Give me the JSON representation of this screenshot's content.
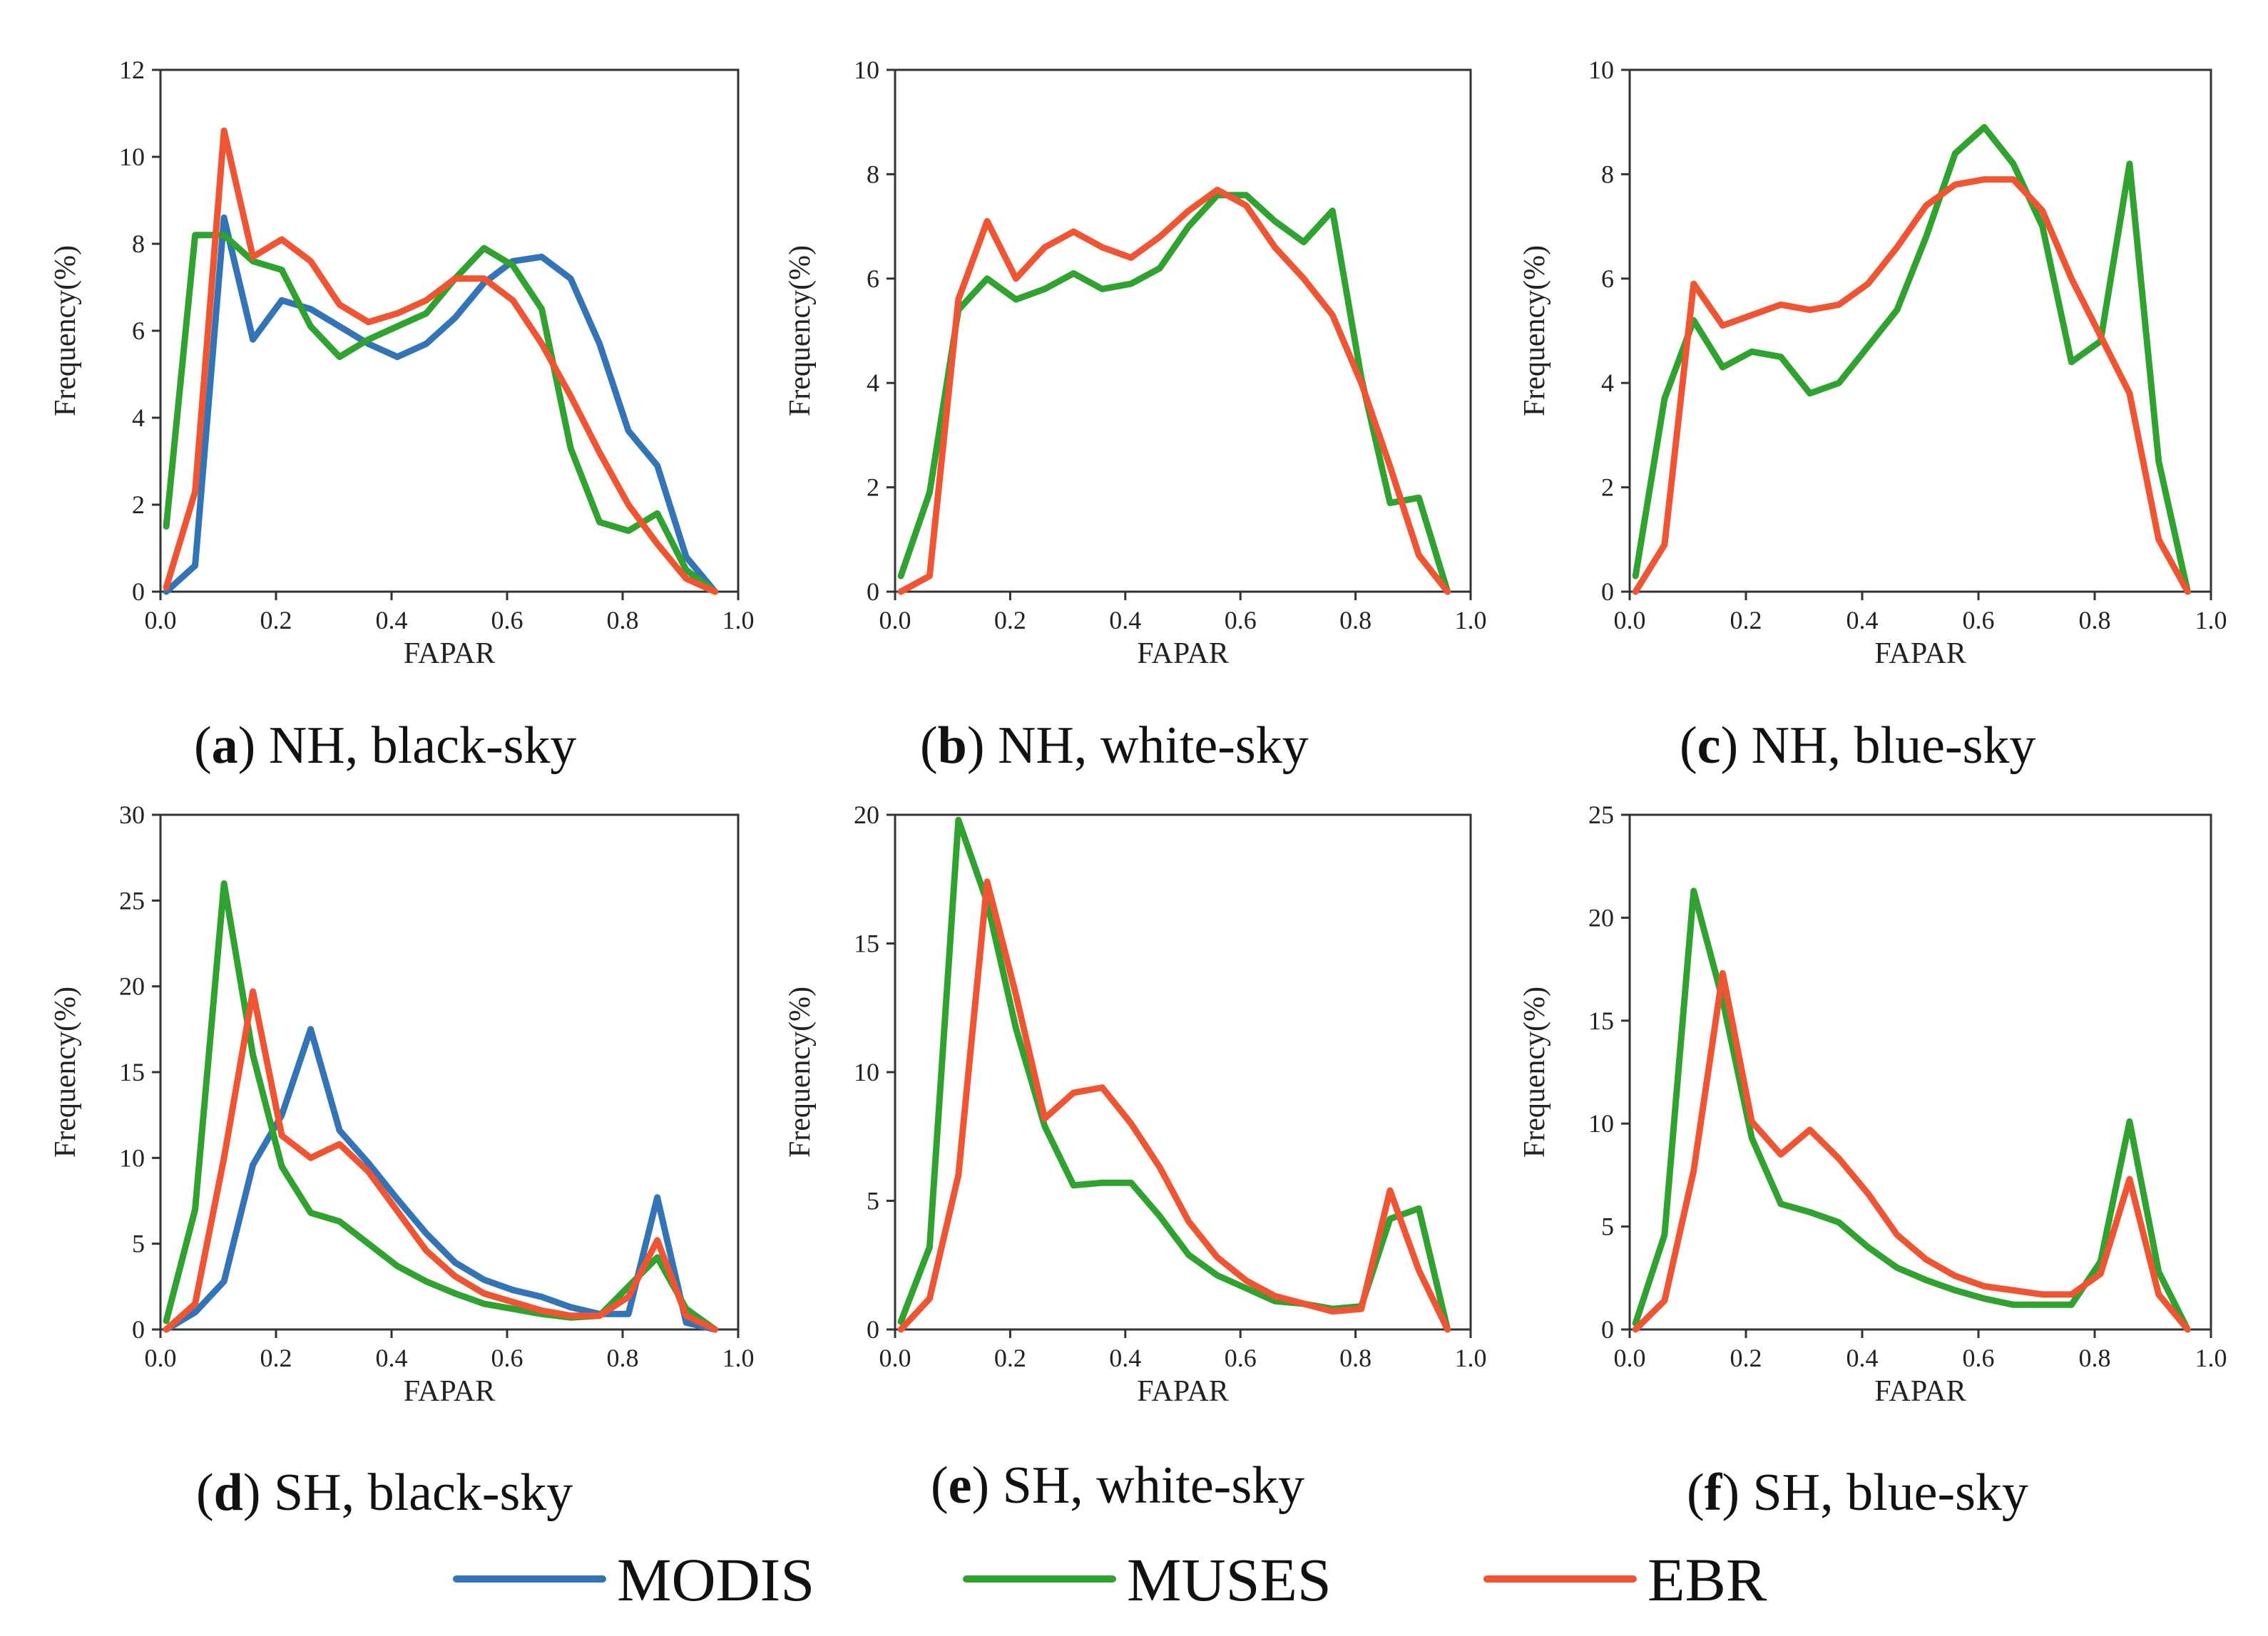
{
  "series_colors": {
    "MODIS": "#3374b6",
    "MUSES": "#2fa22f",
    "EBR": "#ef5533"
  },
  "legend": {
    "items": [
      "MODIS",
      "MUSES",
      "EBR"
    ]
  },
  "chart_data": [
    {
      "type": "line",
      "caption_letter": "a",
      "caption_open": "(",
      "caption_close": ")",
      "caption_text": " NH, black-sky",
      "xlabel": "FAPAR",
      "ylabel": "Frequency(%)",
      "xlim": [
        0.0,
        1.0
      ],
      "ylim": [
        0,
        12
      ],
      "xticks": [
        "0.0",
        "0.2",
        "0.4",
        "0.6",
        "0.8",
        "1.0"
      ],
      "yticks": [
        "0",
        "2",
        "4",
        "6",
        "8",
        "10",
        "12"
      ],
      "x": [
        0.01,
        0.06,
        0.11,
        0.16,
        0.21,
        0.26,
        0.31,
        0.36,
        0.41,
        0.46,
        0.51,
        0.56,
        0.61,
        0.66,
        0.71,
        0.76,
        0.81,
        0.86,
        0.91,
        0.96
      ],
      "series": [
        {
          "name": "MODIS",
          "values": [
            0.0,
            0.6,
            8.6,
            5.8,
            6.7,
            6.5,
            6.1,
            5.7,
            5.4,
            5.7,
            6.3,
            7.1,
            7.6,
            7.7,
            7.2,
            5.7,
            3.7,
            2.9,
            0.8,
            0.0
          ]
        },
        {
          "name": "MUSES",
          "values": [
            1.5,
            8.2,
            8.2,
            7.6,
            7.4,
            6.1,
            5.4,
            5.8,
            6.1,
            6.4,
            7.2,
            7.9,
            7.5,
            6.5,
            3.3,
            1.6,
            1.4,
            1.8,
            0.5,
            0.0
          ]
        },
        {
          "name": "EBR",
          "values": [
            0.1,
            2.3,
            10.6,
            7.7,
            8.1,
            7.6,
            6.6,
            6.2,
            6.4,
            6.7,
            7.2,
            7.2,
            6.7,
            5.7,
            4.5,
            3.2,
            2.0,
            1.1,
            0.3,
            0.0
          ]
        }
      ]
    },
    {
      "type": "line",
      "caption_letter": "b",
      "caption_open": "(",
      "caption_close": ")",
      "caption_text": " NH, white-sky",
      "xlabel": "FAPAR",
      "ylabel": "Frequency(%)",
      "xlim": [
        0.0,
        1.0
      ],
      "ylim": [
        0,
        10
      ],
      "xticks": [
        "0.0",
        "0.2",
        "0.4",
        "0.6",
        "0.8",
        "1.0"
      ],
      "yticks": [
        "0",
        "2",
        "4",
        "6",
        "8",
        "10"
      ],
      "x": [
        0.01,
        0.06,
        0.11,
        0.16,
        0.21,
        0.26,
        0.31,
        0.36,
        0.41,
        0.46,
        0.51,
        0.56,
        0.61,
        0.66,
        0.71,
        0.76,
        0.81,
        0.86,
        0.91,
        0.96
      ],
      "series": [
        {
          "name": "MUSES",
          "values": [
            0.3,
            1.9,
            5.4,
            6.0,
            5.6,
            5.8,
            6.1,
            5.8,
            5.9,
            6.2,
            7.0,
            7.6,
            7.6,
            7.1,
            6.7,
            7.3,
            4.1,
            1.7,
            1.8,
            0.0
          ]
        },
        {
          "name": "EBR",
          "values": [
            0.0,
            0.3,
            5.6,
            7.1,
            6.0,
            6.6,
            6.9,
            6.6,
            6.4,
            6.8,
            7.3,
            7.7,
            7.4,
            6.6,
            6.0,
            5.3,
            4.0,
            2.4,
            0.7,
            0.0
          ]
        }
      ]
    },
    {
      "type": "line",
      "caption_letter": "c",
      "caption_open": "(",
      "caption_close": ")",
      "caption_text": " NH, blue-sky",
      "xlabel": "FAPAR",
      "ylabel": "Frequency(%)",
      "xlim": [
        0.0,
        1.0
      ],
      "ylim": [
        0,
        10
      ],
      "xticks": [
        "0.0",
        "0.2",
        "0.4",
        "0.6",
        "0.8",
        "1.0"
      ],
      "yticks": [
        "0",
        "2",
        "4",
        "6",
        "8",
        "10"
      ],
      "x": [
        0.01,
        0.06,
        0.11,
        0.16,
        0.21,
        0.26,
        0.31,
        0.36,
        0.41,
        0.46,
        0.51,
        0.56,
        0.61,
        0.66,
        0.71,
        0.76,
        0.81,
        0.86,
        0.91,
        0.96
      ],
      "series": [
        {
          "name": "MUSES",
          "values": [
            0.3,
            3.7,
            5.2,
            4.3,
            4.6,
            4.5,
            3.8,
            4.0,
            4.7,
            5.4,
            6.8,
            8.4,
            8.9,
            8.2,
            7.0,
            4.4,
            4.8,
            8.2,
            2.5,
            0.0
          ]
        },
        {
          "name": "EBR",
          "values": [
            0.0,
            0.9,
            5.9,
            5.1,
            5.3,
            5.5,
            5.4,
            5.5,
            5.9,
            6.6,
            7.4,
            7.8,
            7.9,
            7.9,
            7.3,
            6.0,
            4.9,
            3.8,
            1.0,
            0.0
          ]
        }
      ]
    },
    {
      "type": "line",
      "caption_letter": "d",
      "caption_open": "(",
      "caption_close": ")",
      "caption_text": " SH, black-sky",
      "xlabel": "FAPAR",
      "ylabel": "Frequency(%)",
      "xlim": [
        0.0,
        1.0
      ],
      "ylim": [
        0,
        30
      ],
      "xticks": [
        "0.0",
        "0.2",
        "0.4",
        "0.6",
        "0.8",
        "1.0"
      ],
      "yticks": [
        "0",
        "5",
        "10",
        "15",
        "20",
        "25",
        "30"
      ],
      "x": [
        0.01,
        0.06,
        0.11,
        0.16,
        0.21,
        0.26,
        0.31,
        0.36,
        0.41,
        0.46,
        0.51,
        0.56,
        0.61,
        0.66,
        0.71,
        0.76,
        0.81,
        0.86,
        0.91,
        0.96
      ],
      "series": [
        {
          "name": "MODIS",
          "values": [
            0.0,
            1.0,
            2.8,
            9.6,
            12.5,
            17.5,
            11.6,
            9.7,
            7.6,
            5.6,
            3.9,
            2.9,
            2.3,
            1.9,
            1.3,
            0.9,
            0.9,
            7.7,
            0.4,
            0.0
          ]
        },
        {
          "name": "MUSES",
          "values": [
            0.5,
            7.0,
            26.0,
            16.0,
            9.5,
            6.8,
            6.3,
            5.0,
            3.7,
            2.8,
            2.1,
            1.5,
            1.2,
            0.9,
            0.7,
            0.8,
            2.5,
            4.2,
            1.2,
            0.0
          ]
        },
        {
          "name": "EBR",
          "values": [
            0.0,
            1.5,
            10.0,
            19.7,
            11.3,
            10.0,
            10.8,
            9.2,
            6.9,
            4.6,
            3.1,
            2.1,
            1.6,
            1.1,
            0.8,
            0.8,
            1.9,
            5.2,
            0.8,
            0.0
          ]
        }
      ]
    },
    {
      "type": "line",
      "caption_letter": "e",
      "caption_open": "(",
      "caption_close": ")",
      "caption_text": " SH, white-sky",
      "xlabel": "FAPAR",
      "ylabel": "Frequency(%)",
      "xlim": [
        0.0,
        1.0
      ],
      "ylim": [
        0,
        20
      ],
      "xticks": [
        "0.0",
        "0.2",
        "0.4",
        "0.6",
        "0.8",
        "1.0"
      ],
      "yticks": [
        "0",
        "5",
        "10",
        "15",
        "20"
      ],
      "x": [
        0.01,
        0.06,
        0.11,
        0.16,
        0.21,
        0.26,
        0.31,
        0.36,
        0.41,
        0.46,
        0.51,
        0.56,
        0.61,
        0.66,
        0.71,
        0.76,
        0.81,
        0.86,
        0.91,
        0.96
      ],
      "series": [
        {
          "name": "MUSES",
          "values": [
            0.3,
            3.2,
            19.8,
            16.6,
            11.7,
            7.9,
            5.6,
            5.7,
            5.7,
            4.4,
            2.9,
            2.1,
            1.6,
            1.1,
            1.0,
            0.8,
            0.9,
            4.3,
            4.7,
            0.0
          ]
        },
        {
          "name": "EBR",
          "values": [
            0.0,
            1.2,
            6.0,
            17.4,
            13.0,
            8.2,
            9.2,
            9.4,
            8.0,
            6.3,
            4.2,
            2.8,
            1.9,
            1.3,
            1.0,
            0.7,
            0.8,
            5.4,
            2.3,
            0.0
          ]
        }
      ]
    },
    {
      "type": "line",
      "caption_letter": "f",
      "caption_open": "(",
      "caption_close": ")",
      "caption_text": " SH, blue-sky",
      "xlabel": "FAPAR",
      "ylabel": "Frequency(%)",
      "xlim": [
        0.0,
        1.0
      ],
      "ylim": [
        0,
        25
      ],
      "xticks": [
        "0.0",
        "0.2",
        "0.4",
        "0.6",
        "0.8",
        "1.0"
      ],
      "yticks": [
        "0",
        "5",
        "10",
        "15",
        "20",
        "25"
      ],
      "x": [
        0.01,
        0.06,
        0.11,
        0.16,
        0.21,
        0.26,
        0.31,
        0.36,
        0.41,
        0.46,
        0.51,
        0.56,
        0.61,
        0.66,
        0.71,
        0.76,
        0.81,
        0.86,
        0.91,
        0.96
      ],
      "series": [
        {
          "name": "MUSES",
          "values": [
            0.3,
            4.6,
            21.3,
            16.0,
            9.3,
            6.1,
            5.7,
            5.2,
            4.0,
            3.0,
            2.4,
            1.9,
            1.5,
            1.2,
            1.2,
            1.2,
            3.3,
            10.1,
            2.8,
            0.0
          ]
        },
        {
          "name": "EBR",
          "values": [
            0.0,
            1.4,
            7.7,
            17.3,
            10.1,
            8.5,
            9.7,
            8.3,
            6.6,
            4.6,
            3.4,
            2.6,
            2.1,
            1.9,
            1.7,
            1.7,
            2.7,
            7.3,
            1.7,
            0.0
          ]
        }
      ]
    }
  ]
}
